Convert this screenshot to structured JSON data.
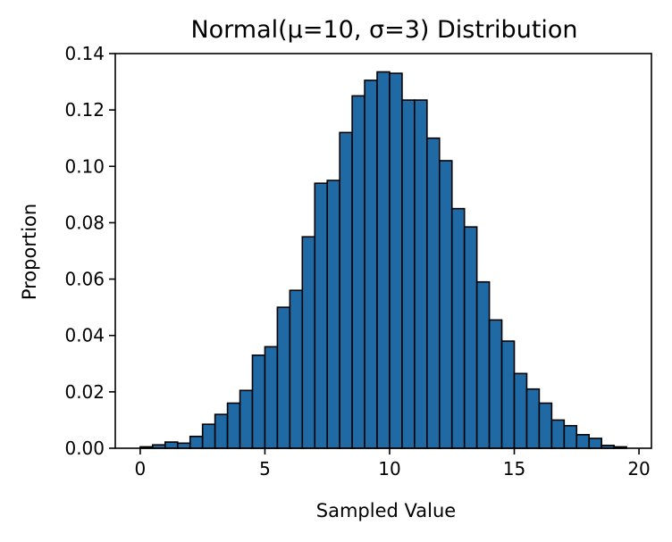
{
  "chart_data": {
    "type": "bar",
    "title": "Normal(μ=10, σ=3) Distribution",
    "xlabel": "Sampled Value",
    "ylabel": "Proportion",
    "xlim": [
      -1,
      20.5
    ],
    "ylim": [
      0,
      0.14
    ],
    "xticks": [
      0,
      5,
      10,
      15,
      20
    ],
    "xtick_labels": [
      "0",
      "5",
      "10",
      "15",
      "20"
    ],
    "yticks": [
      0,
      0.02,
      0.04,
      0.06,
      0.08,
      0.1,
      0.12,
      0.14
    ],
    "ytick_labels": [
      "0.00",
      "0.02",
      "0.04",
      "0.06",
      "0.08",
      "0.10",
      "0.12",
      "0.14"
    ],
    "grid": false,
    "bar_color": "#1f6aa5",
    "edge_color": "#000000",
    "bin_edges": [
      0.0,
      0.5,
      1.0,
      1.5,
      2.0,
      2.5,
      3.0,
      3.5,
      4.0,
      4.5,
      5.0,
      5.5,
      6.0,
      6.5,
      7.0,
      7.5,
      8.0,
      8.5,
      9.0,
      9.5,
      10.0,
      10.5,
      11.0,
      11.5,
      12.0,
      12.5,
      13.0,
      13.5,
      14.0,
      14.5,
      15.0,
      15.5,
      16.0,
      16.5,
      17.0,
      17.5,
      18.0,
      18.5,
      19.0,
      19.5
    ],
    "values": [
      0.0005,
      0.0012,
      0.0022,
      0.0018,
      0.0042,
      0.0085,
      0.012,
      0.016,
      0.0205,
      0.033,
      0.036,
      0.05,
      0.056,
      0.075,
      0.094,
      0.095,
      0.112,
      0.125,
      0.1305,
      0.1335,
      0.133,
      0.1235,
      0.1235,
      0.11,
      0.102,
      0.085,
      0.0785,
      0.059,
      0.0455,
      0.038,
      0.0265,
      0.021,
      0.016,
      0.01,
      0.008,
      0.0048,
      0.0035,
      0.001,
      0.0005
    ]
  }
}
